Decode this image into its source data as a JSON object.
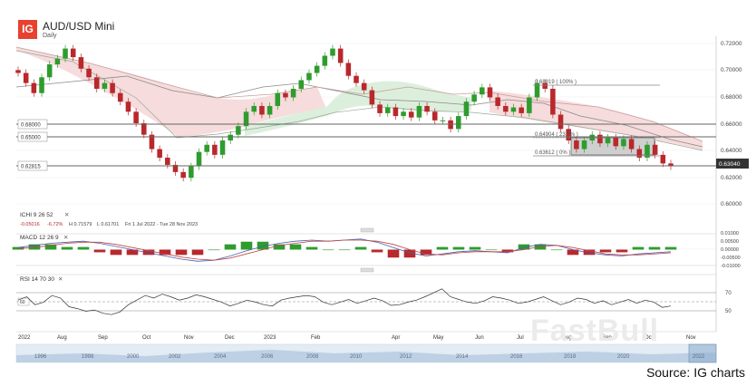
{
  "header": {
    "logo": "IG",
    "title": "AUD/USD Mini",
    "subtitle": "Daily"
  },
  "source": "Source: IG charts",
  "watermark": "FastBull",
  "colors": {
    "up": "#2e9c2e",
    "down": "#b8282c",
    "cloud_bear": "#f6dcdc",
    "cloud_bull": "#dcefdc",
    "last_price_bg": "#333333"
  },
  "price_levels": {
    "l1": "0.68000",
    "l2": "0.65000",
    "l3": "0.62815",
    "last": "0.63040"
  },
  "fibonacci": {
    "f100": "0.68819 ( 100% )",
    "f236": "0.64904 ( 23.6% )",
    "f0": "0.63612 ( 0% )"
  },
  "indicators": {
    "ichimoku": {
      "label": "ICHI  9  26  52",
      "readout": [
        "-0.05016",
        "-6.72%",
        "H 0.71579",
        "L 0.61701",
        "Fri 1 Jul 2022 - Tue 28 Nov 2023"
      ]
    },
    "macd": {
      "label": "MACD  12  26  9"
    },
    "rsi": {
      "label": "RSI  14  70  30",
      "level_top": "70",
      "level_mid": "50",
      "level_marker": "60"
    }
  },
  "timeline": {
    "months": [
      "2022",
      "Aug",
      "Sep",
      "Oct",
      "Nov",
      "Dec",
      "2023",
      "Feb",
      "Apr",
      "May",
      "Jun",
      "Jul",
      "Aug",
      "Sep",
      "Oct",
      "Nov"
    ],
    "navigator_years": [
      "1996",
      "1998",
      "2000",
      "2002",
      "2004",
      "2006",
      "2008",
      "2010",
      "2012",
      "2014",
      "2016",
      "2018",
      "2020",
      "2022"
    ]
  },
  "chart_data": {
    "type": "line",
    "instrument": "AUD/USD Mini",
    "interval": "Daily",
    "grid": true,
    "y_axis_ticks": [
      "0.72000",
      "0.70000",
      "0.68000",
      "0.66000",
      "0.64000",
      "0.62000",
      "0.60000"
    ],
    "ylim": [
      0.595,
      0.725
    ],
    "horizontal_lines": [
      0.68,
      0.65,
      0.62815
    ],
    "fibonacci_levels": [
      0.68819,
      0.64904,
      0.63612
    ],
    "last_price": 0.6304,
    "closes": [
      0.695,
      0.688,
      0.681,
      0.692,
      0.701,
      0.705,
      0.712,
      0.706,
      0.698,
      0.692,
      0.684,
      0.688,
      0.681,
      0.675,
      0.668,
      0.66,
      0.652,
      0.642,
      0.636,
      0.631,
      0.626,
      0.622,
      0.63,
      0.64,
      0.645,
      0.638,
      0.648,
      0.652,
      0.658,
      0.668,
      0.672,
      0.666,
      0.672,
      0.681,
      0.678,
      0.684,
      0.69,
      0.695,
      0.7,
      0.707,
      0.712,
      0.702,
      0.693,
      0.688,
      0.683,
      0.673,
      0.667,
      0.671,
      0.665,
      0.668,
      0.664,
      0.672,
      0.668,
      0.662,
      0.662,
      0.656,
      0.665,
      0.675,
      0.68,
      0.685,
      0.678,
      0.672,
      0.668,
      0.671,
      0.667,
      0.678,
      0.688,
      0.684,
      0.666,
      0.656,
      0.648,
      0.642,
      0.648,
      0.652,
      0.646,
      0.65,
      0.644,
      0.649,
      0.642,
      0.636,
      0.645,
      0.638,
      0.632,
      0.63
    ],
    "macd_ylim": [
      -0.015,
      0.015
    ],
    "macd_ticks": [
      "0.01000",
      "0.00500",
      "0.00000",
      "-0.00500",
      "-0.01000"
    ],
    "macd": [
      0.002,
      0.004,
      0.006,
      0.007,
      0.008,
      0.006,
      0.003,
      0.0,
      -0.003,
      -0.006,
      -0.009,
      -0.011,
      -0.01,
      -0.006,
      -0.001,
      0.003,
      0.006,
      0.008,
      0.009,
      0.008,
      0.009,
      0.01,
      0.007,
      0.002,
      -0.003,
      -0.006,
      -0.004,
      -0.002,
      -0.001,
      -0.002,
      -0.003,
      0.002,
      0.005,
      0.004,
      0.0,
      -0.003,
      -0.005,
      -0.006,
      -0.004,
      -0.003,
      -0.002
    ],
    "macd_signal": [
      0.001,
      0.002,
      0.004,
      0.006,
      0.007,
      0.007,
      0.005,
      0.002,
      -0.001,
      -0.004,
      -0.007,
      -0.009,
      -0.01,
      -0.008,
      -0.004,
      0.0,
      0.004,
      0.006,
      0.008,
      0.008,
      0.009,
      0.009,
      0.008,
      0.005,
      0.0,
      -0.004,
      -0.005,
      -0.003,
      -0.002,
      -0.002,
      -0.002,
      0.0,
      0.003,
      0.004,
      0.002,
      -0.001,
      -0.004,
      -0.005,
      -0.005,
      -0.004,
      -0.003
    ],
    "rsi_ylim": [
      25,
      80
    ],
    "rsi": [
      55,
      60,
      48,
      52,
      62,
      58,
      45,
      42,
      38,
      40,
      35,
      33,
      37,
      48,
      55,
      62,
      58,
      64,
      60,
      55,
      58,
      63,
      60,
      56,
      52,
      46,
      50,
      55,
      52,
      48,
      46,
      55,
      58,
      60,
      62,
      60,
      52,
      48,
      52,
      56,
      50,
      54,
      58,
      54,
      47,
      48,
      52,
      55,
      60,
      66,
      72,
      60,
      56,
      52,
      50,
      54,
      60,
      58,
      55,
      50,
      52,
      56,
      60,
      54,
      48,
      52,
      58,
      56,
      50,
      54,
      48,
      52,
      56,
      50,
      55,
      52,
      44,
      46
    ]
  }
}
